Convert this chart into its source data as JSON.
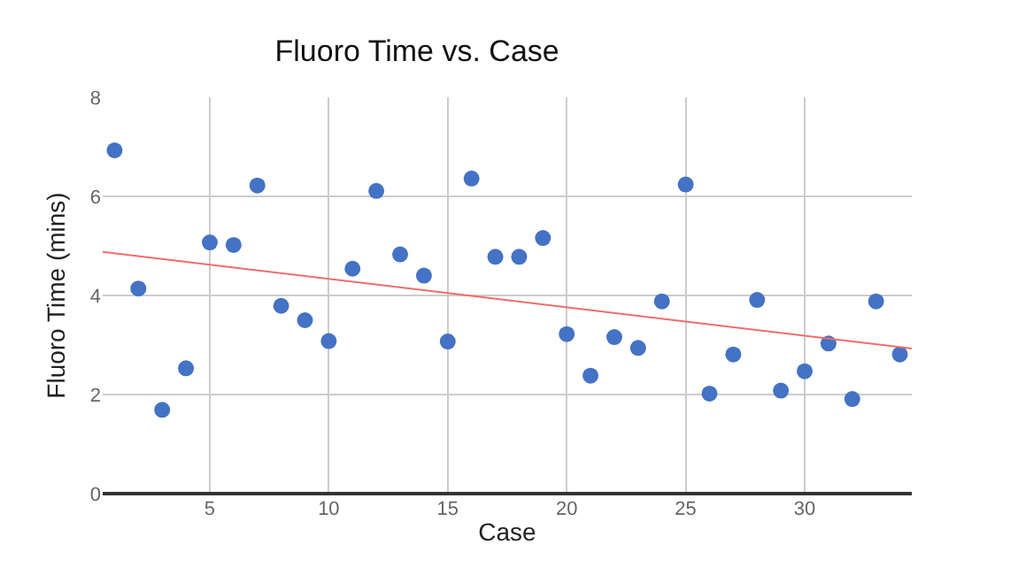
{
  "chart_data": {
    "type": "scatter",
    "title": "Fluoro Time vs. Case",
    "xlabel": "Case",
    "ylabel": "Fluoro Time (mins)",
    "xlim": [
      0.5,
      34.5
    ],
    "xticks": [
      5,
      10,
      15,
      20,
      25,
      30
    ],
    "ylim": [
      0,
      8
    ],
    "yticks": [
      0,
      2,
      4,
      6,
      8
    ],
    "grid": true,
    "series": [
      {
        "color": "#4472c4",
        "x": [
          1,
          2,
          3,
          4,
          5,
          6,
          7,
          8,
          9,
          10,
          11,
          12,
          13,
          14,
          15,
          16,
          17,
          18,
          19,
          20,
          21,
          22,
          23,
          24,
          25,
          26,
          27,
          28,
          29,
          30,
          31,
          32,
          33,
          34
        ],
        "values": [
          6.93,
          4.14,
          1.69,
          2.53,
          5.07,
          5.02,
          6.22,
          3.79,
          3.5,
          3.08,
          4.54,
          6.11,
          4.83,
          4.4,
          3.07,
          6.36,
          4.78,
          4.78,
          5.16,
          3.22,
          2.38,
          3.16,
          2.94,
          3.88,
          6.24,
          2.02,
          2.81,
          3.91,
          2.08,
          2.47,
          3.03,
          1.91,
          3.88,
          2.81
        ]
      },
      {
        "type": "line",
        "color": "#ef6c6c",
        "x": [
          0.5,
          34.5
        ],
        "values": [
          4.88,
          2.93
        ]
      }
    ]
  }
}
